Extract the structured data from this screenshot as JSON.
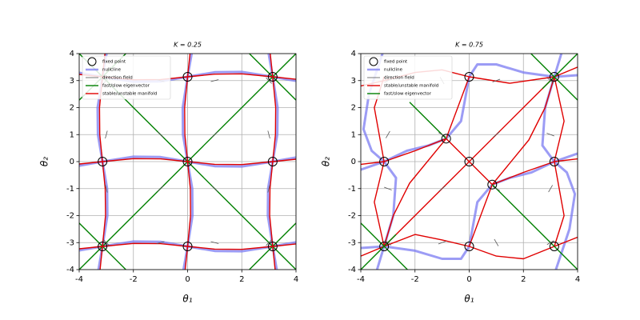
{
  "chart_data": [
    {
      "type": "phase",
      "title": "K = 0.25",
      "xlabel": "θ₁",
      "ylabel": "θ₂",
      "xlim": [
        -4,
        4
      ],
      "ylim": [
        -4,
        4
      ],
      "xticks": [
        -4,
        -2,
        0,
        2,
        4
      ],
      "yticks": [
        -4,
        -3,
        -2,
        -1,
        0,
        1,
        2,
        3,
        4
      ],
      "grid": true,
      "legend": "upper left",
      "series": [
        {
          "name": "fixed point",
          "color": "#000000",
          "marker": "circle",
          "x": [
            0,
            3.14,
            -3.14,
            0,
            3.14,
            -3.14,
            0,
            3.14
          ],
          "y": [
            0,
            0,
            0,
            3.14,
            3.14,
            -3.14,
            -3.14,
            -3.14
          ]
        },
        {
          "name": "nullcline",
          "color": "#7b7bf2",
          "alpha": 0.75,
          "x": [
            -0.15,
            0,
            0.18,
            0.17,
            0,
            -0.17,
            -0.18,
            0,
            0.15,
            null,
            3.29,
            3.14,
            2.96,
            2.97,
            3.14,
            3.31,
            3.32,
            3.14,
            2.99,
            null,
            -3.29,
            -3.14,
            -2.96,
            -2.97,
            -3.14,
            -3.31,
            -3.32,
            -3.14,
            -2.99,
            null,
            -4,
            -3.14,
            -2,
            -1,
            0,
            1,
            2,
            3.14,
            4,
            null,
            -4,
            -3.14,
            -2,
            -1,
            0,
            1,
            2,
            3.14,
            4,
            null,
            -4,
            -3.14,
            -2,
            -1,
            0,
            1,
            2,
            3.14,
            4
          ],
          "y": [
            -4,
            -3.14,
            -2,
            -1,
            0,
            1,
            2,
            3.14,
            4,
            null,
            -4,
            -3.14,
            -2,
            -1,
            0,
            1,
            2,
            3.14,
            4,
            null,
            -4,
            -3.14,
            -2,
            -1,
            0,
            1,
            2,
            3.14,
            4,
            null,
            -0.15,
            0,
            0.18,
            0.17,
            0,
            -0.17,
            -0.18,
            0,
            0.15,
            null,
            3.29,
            3.14,
            2.96,
            2.97,
            3.14,
            3.31,
            3.32,
            3.14,
            2.99,
            null,
            -3.29,
            -3.14,
            -2.96,
            -2.97,
            -3.14,
            -3.31,
            -3.32,
            -3.14,
            -2.99
          ]
        },
        {
          "name": "direction field",
          "color": "#555555",
          "marker": "segment",
          "x": [
            -3,
            -1,
            1,
            3,
            -3,
            -1,
            1,
            3,
            -3,
            -1,
            1,
            3,
            -3,
            -1,
            1,
            3
          ],
          "y": [
            3,
            3,
            3,
            3,
            1,
            1,
            1,
            1,
            -1,
            -1,
            -1,
            -1,
            -3,
            -3,
            -3,
            -3
          ],
          "values": [
            45,
            -15,
            15,
            -45,
            75,
            -45,
            45,
            -75,
            -75,
            45,
            -45,
            75,
            -45,
            15,
            -15,
            45
          ]
        },
        {
          "name": "fast/slow eigenvector",
          "color": "#008000",
          "x": [
            -4,
            4,
            null,
            -4,
            4,
            null,
            2.28,
            4,
            null,
            -4,
            -2.28,
            null,
            2.28,
            4,
            null,
            -4,
            -2.28
          ],
          "y": [
            -4,
            4,
            null,
            4,
            -4,
            null,
            4,
            2.28,
            null,
            -2.28,
            -4,
            null,
            -4,
            -2.28,
            null,
            2.28,
            4
          ]
        },
        {
          "name": "stable/unstable manifold",
          "color": "#e00000",
          "x": [
            -0.09,
            0,
            0.11,
            0.1,
            0,
            -0.1,
            -0.11,
            0,
            0.09,
            null,
            3.23,
            3.14,
            3.03,
            3.04,
            3.14,
            3.24,
            3.25,
            3.14,
            3.05,
            null,
            -3.23,
            -3.14,
            -3.03,
            -3.04,
            -3.14,
            -3.24,
            -3.25,
            -3.14,
            -3.05,
            null,
            -4,
            -3.14,
            -2,
            -1,
            0,
            1,
            2,
            3.14,
            4,
            null,
            -4,
            -3.14,
            -2,
            -1,
            0,
            1,
            2,
            3.14,
            4,
            null,
            -4,
            -3.14,
            -2,
            -1,
            0,
            1,
            2,
            3.14,
            4
          ],
          "y": [
            -4,
            -3.14,
            -2,
            -1,
            0,
            1,
            2,
            3.14,
            4,
            null,
            -4,
            -3.14,
            -2,
            -1,
            0,
            1,
            2,
            3.14,
            4,
            null,
            -4,
            -3.14,
            -2,
            -1,
            0,
            1,
            2,
            3.14,
            4,
            null,
            -0.09,
            0,
            0.11,
            0.1,
            0,
            -0.1,
            -0.11,
            0,
            0.09,
            null,
            3.23,
            3.14,
            3.03,
            3.04,
            3.14,
            3.24,
            3.25,
            3.14,
            3.05,
            null,
            -3.23,
            -3.14,
            -3.03,
            -3.04,
            -3.14,
            -3.24,
            -3.25,
            -3.14,
            -3.05
          ]
        }
      ]
    },
    {
      "type": "phase",
      "title": "K = 0.75",
      "xlabel": "θ₁",
      "ylabel": "θ₂",
      "xlim": [
        -4,
        4
      ],
      "ylim": [
        -4,
        4
      ],
      "xticks": [
        -4,
        -2,
        0,
        2,
        4
      ],
      "yticks": [
        -4,
        -3,
        -2,
        -1,
        0,
        1,
        2,
        3,
        4
      ],
      "grid": true,
      "legend": "upper left",
      "series": [
        {
          "name": "fixed point",
          "color": "#000000",
          "marker": "circle",
          "x": [
            0,
            3.14,
            -3.14,
            0,
            3.14,
            -3.14,
            0,
            3.14,
            -0.85,
            0.85
          ],
          "y": [
            0,
            0,
            0,
            3.14,
            3.14,
            -3.14,
            -3.14,
            -3.14,
            0.85,
            -0.85
          ]
        },
        {
          "name": "nullcline",
          "color": "#7b7bf2",
          "alpha": 0.75,
          "x": [
            -4,
            -3.14,
            -2.3,
            -1.5,
            -0.85,
            -0.3,
            0,
            0.3,
            1,
            2,
            3.14,
            4,
            null,
            4,
            3.14,
            2.3,
            1.5,
            0.85,
            0.3,
            0,
            -0.3,
            -1,
            -2,
            -3.14,
            -4,
            null,
            -3.2,
            -3.7,
            -3.9,
            -3.6,
            -3.14,
            -2.7,
            -2.8,
            -3.14,
            -3.4,
            null,
            3.2,
            3.7,
            3.9,
            3.6,
            3.14,
            2.7,
            2.8,
            3.14,
            3.4
          ],
          "y": [
            -0.3,
            0,
            0.4,
            0.6,
            0.85,
            1.5,
            3.14,
            3.6,
            3.6,
            3.3,
            3.14,
            3.2,
            null,
            0.3,
            0,
            -0.4,
            -0.6,
            -0.85,
            -1.5,
            -3.14,
            -3.6,
            -3.6,
            -3.3,
            -3.14,
            -3.2,
            null,
            4,
            2.5,
            1.2,
            0.4,
            0,
            -0.6,
            -2,
            -3.14,
            -4,
            null,
            -4,
            -2.5,
            -1.2,
            -0.4,
            0,
            0.6,
            2,
            3.14,
            4
          ]
        },
        {
          "name": "direction field",
          "color": "#555555",
          "marker": "segment",
          "x": [
            -3,
            -1,
            1,
            3,
            -3,
            -1,
            1,
            3,
            -3,
            -1,
            1,
            3,
            -3,
            -1,
            1,
            3
          ],
          "y": [
            3,
            3,
            3,
            3,
            1,
            1,
            1,
            1,
            -1,
            -1,
            -1,
            -1,
            -3,
            -3,
            -3,
            -3
          ],
          "values": [
            30,
            -60,
            20,
            -40,
            60,
            -30,
            40,
            -20,
            -20,
            40,
            -30,
            60,
            -40,
            20,
            -60,
            30
          ]
        },
        {
          "name": "stable/unstable manifold",
          "color": "#e00000",
          "x": [
            -3.14,
            3.14,
            null,
            -3.14,
            -2.8,
            -2.2,
            -0.85,
            null,
            -4,
            -3.14,
            -2,
            -0.85,
            0,
            null,
            -0.85,
            -0.4,
            0,
            null,
            3.14,
            2.8,
            2.2,
            0.85,
            null,
            4,
            3.14,
            2,
            0.85,
            0,
            null,
            0.85,
            0.4,
            0,
            null,
            -4,
            -3.14,
            -2,
            -1,
            0,
            1,
            2,
            3.14,
            4,
            null,
            -4,
            -3.14,
            -2,
            -1,
            0,
            1.5,
            3.14,
            4,
            null,
            3.14,
            3.5,
            3.14,
            3.5,
            3.14,
            null,
            -3.14,
            -3.5,
            -3.14,
            -3.5,
            -3.14
          ],
          "y": [
            -3.14,
            3.14,
            null,
            -3.14,
            -2,
            -0.8,
            0.85,
            null,
            -0.1,
            0,
            0.4,
            0.85,
            3.14,
            null,
            0.85,
            0.4,
            0,
            null,
            3.14,
            2,
            0.8,
            -0.85,
            null,
            0.1,
            0,
            -0.4,
            -0.85,
            -3.14,
            null,
            -0.85,
            -0.4,
            0,
            null,
            -3.5,
            -3.14,
            -2.7,
            -2.9,
            -3.14,
            -3.5,
            -3.6,
            -3.14,
            -2.8,
            null,
            2.8,
            3.0,
            3.3,
            3.4,
            3.14,
            2.9,
            3.14,
            3.5,
            null,
            3.14,
            1.5,
            0,
            -2,
            -3.14,
            null,
            -3.14,
            -1.5,
            0,
            2,
            3.14
          ]
        },
        {
          "name": "fast/slow eigenvector",
          "color": "#008000",
          "x": [
            -2.2,
            -0.85,
            null,
            0.85,
            4,
            null,
            2.28,
            4,
            null,
            2.7,
            4,
            null,
            -4,
            -2.28,
            null,
            -4,
            -2.7
          ],
          "y": [
            2.2,
            0.85,
            null,
            -0.85,
            -4,
            null,
            4,
            2.28,
            null,
            2.7,
            4,
            null,
            -2.28,
            -4,
            null,
            -4,
            -2.7
          ]
        }
      ]
    }
  ]
}
